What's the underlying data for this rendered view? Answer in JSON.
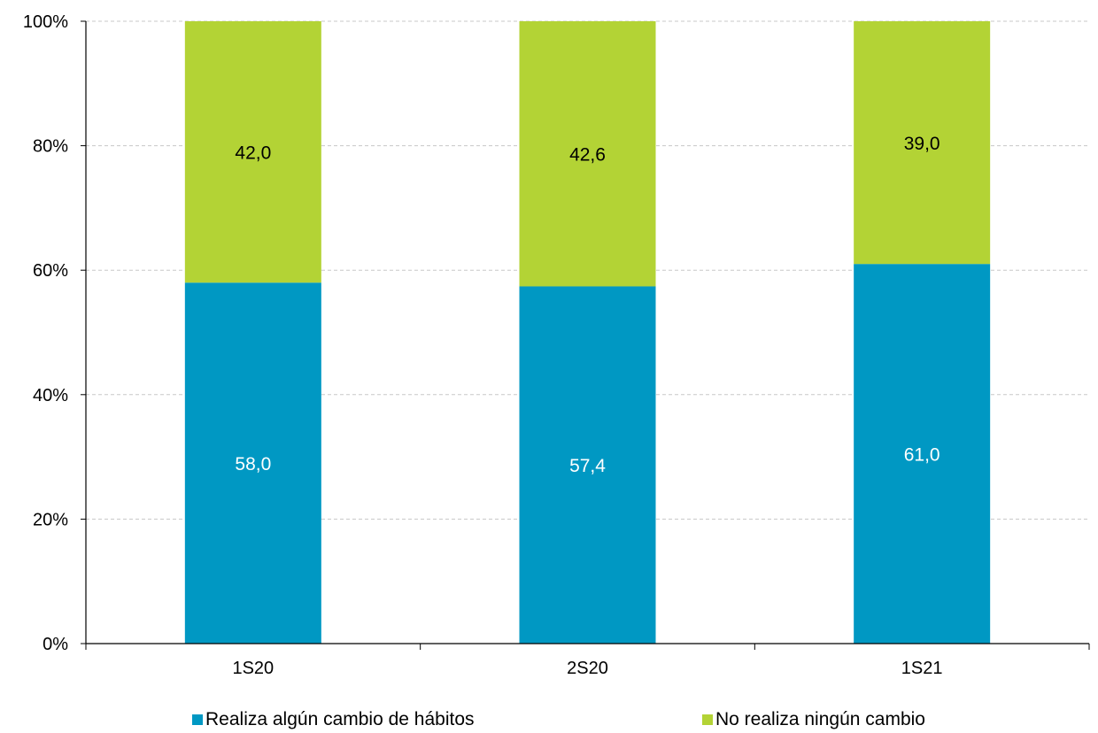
{
  "chart_data": {
    "type": "bar",
    "stacked": true,
    "categories": [
      "1S20",
      "2S20",
      "1S21"
    ],
    "series": [
      {
        "name": "Realiza algún cambio de hábitos",
        "values": [
          58.0,
          57.4,
          61.0
        ],
        "labels": [
          "58,0",
          "57,4",
          "61,0"
        ],
        "color": "#0098c3",
        "label_color": "#ffffff"
      },
      {
        "name": "No realiza ningún cambio",
        "values": [
          42.0,
          42.6,
          39.0
        ],
        "labels": [
          "42,0",
          "42,6",
          "39,0"
        ],
        "color": "#b3d335",
        "label_color": "#000000"
      }
    ],
    "ylim": [
      0,
      100
    ],
    "yticks": [
      "0%",
      "20%",
      "40%",
      "60%",
      "80%",
      "100%"
    ],
    "grid": true,
    "legend_position": "bottom",
    "title": "",
    "xlabel": "",
    "ylabel": ""
  }
}
